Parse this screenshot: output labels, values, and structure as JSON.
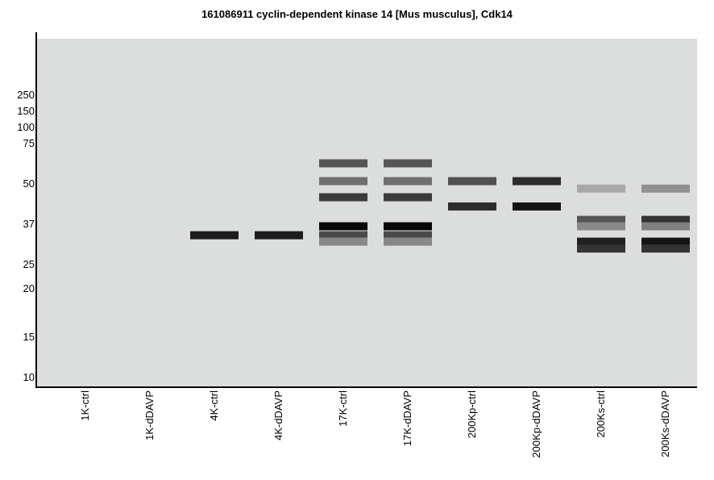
{
  "chart_data": {
    "type": "heatmap",
    "title": "161086911 cyclin-dependent kinase 14 [Mus musculus], Cdk14",
    "y_ticks": [
      250,
      150,
      100,
      75,
      50,
      37,
      25,
      20,
      15,
      10
    ],
    "lanes": [
      "1K-ctrl",
      "1K-dDAVP",
      "4K-ctrl",
      "4K-dDAVP",
      "17K-ctrl",
      "17K-dDAVP",
      "200Kp-ctrl",
      "200Kp-dDAVP",
      "200Ks-ctrl",
      "200Ks-dDAVP"
    ],
    "bands": [
      {
        "lane": 2,
        "mw": 33,
        "color": "#1c1c1c"
      },
      {
        "lane": 3,
        "mw": 33,
        "color": "#1c1c1c"
      },
      {
        "lane": 4,
        "mw": 61,
        "color": "#555555"
      },
      {
        "lane": 4,
        "mw": 51,
        "color": "#707070"
      },
      {
        "lane": 4,
        "mw": 45,
        "color": "#3c3c3c"
      },
      {
        "lane": 4,
        "mw": 36,
        "color": "#080808"
      },
      {
        "lane": 4,
        "mw": 33,
        "color": "#4a4a4a"
      },
      {
        "lane": 4,
        "mw": 31,
        "color": "#888888"
      },
      {
        "lane": 5,
        "mw": 61,
        "color": "#555555"
      },
      {
        "lane": 5,
        "mw": 51,
        "color": "#707070"
      },
      {
        "lane": 5,
        "mw": 45,
        "color": "#3c3c3c"
      },
      {
        "lane": 5,
        "mw": 36,
        "color": "#080808"
      },
      {
        "lane": 5,
        "mw": 33,
        "color": "#4a4a4a"
      },
      {
        "lane": 5,
        "mw": 31,
        "color": "#888888"
      },
      {
        "lane": 6,
        "mw": 51,
        "color": "#505050"
      },
      {
        "lane": 6,
        "mw": 42,
        "color": "#2c2c2c"
      },
      {
        "lane": 7,
        "mw": 51,
        "color": "#2c2c2c"
      },
      {
        "lane": 7,
        "mw": 42,
        "color": "#141414"
      },
      {
        "lane": 8,
        "mw": 48,
        "color": "#a8a8a8"
      },
      {
        "lane": 8,
        "mw": 38,
        "color": "#555555"
      },
      {
        "lane": 8,
        "mw": 36,
        "color": "#888888"
      },
      {
        "lane": 8,
        "mw": 31,
        "color": "#222222"
      },
      {
        "lane": 8,
        "mw": 29,
        "color": "#333333"
      },
      {
        "lane": 9,
        "mw": 48,
        "color": "#909090"
      },
      {
        "lane": 9,
        "mw": 38,
        "color": "#333333"
      },
      {
        "lane": 9,
        "mw": 36,
        "color": "#808080"
      },
      {
        "lane": 9,
        "mw": 31,
        "color": "#151515"
      },
      {
        "lane": 9,
        "mw": 29,
        "color": "#333333"
      }
    ],
    "background": "#dcdddd"
  }
}
